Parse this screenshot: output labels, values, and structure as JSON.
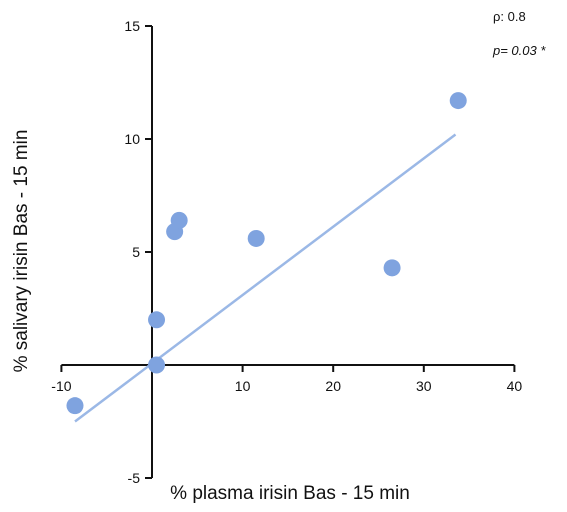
{
  "chart_data": {
    "type": "scatter",
    "title": "",
    "xlabel": "% plasma irisin Bas - 15 min",
    "ylabel": "% salivary irisin Bas - 15 min",
    "xlim": [
      -10,
      40
    ],
    "ylim": [
      -5,
      15
    ],
    "x_ticks": [
      -10,
      10,
      20,
      30,
      40
    ],
    "y_ticks": [
      -5,
      5,
      10,
      15
    ],
    "grid": false,
    "point_color": "#7fa3df",
    "line_color": "#9bb8e6",
    "series": [
      {
        "points": [
          {
            "x": -8.5,
            "y": -1.8
          },
          {
            "x": 0.5,
            "y": 0.0
          },
          {
            "x": 0.5,
            "y": 2.0
          },
          {
            "x": 2.5,
            "y": 5.9
          },
          {
            "x": 3.0,
            "y": 6.4
          },
          {
            "x": 11.5,
            "y": 5.6
          },
          {
            "x": 26.5,
            "y": 4.3
          },
          {
            "x": 33.8,
            "y": 11.7
          }
        ]
      }
    ],
    "regression_line": {
      "x1": -8.5,
      "y1": -2.5,
      "x2": 33.5,
      "y2": 10.2
    },
    "annotations": {
      "rho_label": "ρ: 0.8",
      "p_label": "p= 0.03 *"
    }
  }
}
